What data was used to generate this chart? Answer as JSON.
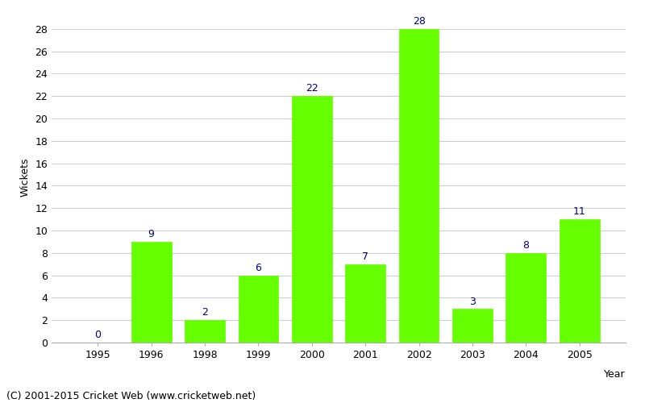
{
  "years": [
    "1995",
    "1996",
    "1998",
    "1999",
    "2000",
    "2001",
    "2002",
    "2003",
    "2004",
    "2005"
  ],
  "wickets": [
    0,
    9,
    2,
    6,
    22,
    7,
    28,
    3,
    8,
    11
  ],
  "bar_color": "#66ff00",
  "bar_edge_color": "#66ff00",
  "label_color": "#000080",
  "xlabel": "Year",
  "ylabel": "Wickets",
  "ylim": [
    0,
    29.5
  ],
  "yticks": [
    0,
    2,
    4,
    6,
    8,
    10,
    12,
    14,
    16,
    18,
    20,
    22,
    24,
    26,
    28
  ],
  "label_fontsize": 9,
  "axis_fontsize": 9,
  "tick_fontsize": 9,
  "footer_text": "(C) 2001-2015 Cricket Web (www.cricketweb.net)",
  "footer_fontsize": 9,
  "background_color": "#ffffff",
  "grid_color": "#cccccc",
  "bar_width": 0.75
}
